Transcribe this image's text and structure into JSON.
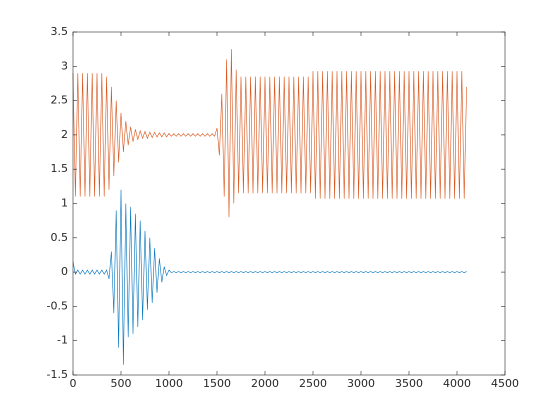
{
  "chart_data": {
    "type": "line",
    "x": [
      0,
      25,
      50,
      75,
      100,
      125,
      150,
      175,
      200,
      225,
      250,
      275,
      300,
      325,
      350,
      375,
      400,
      425,
      450,
      475,
      500,
      525,
      550,
      575,
      600,
      625,
      650,
      675,
      700,
      725,
      750,
      775,
      800,
      825,
      850,
      875,
      900,
      925,
      950,
      975,
      1000,
      1025,
      1050,
      1075,
      1100,
      1125,
      1150,
      1175,
      1200,
      1225,
      1250,
      1275,
      1300,
      1325,
      1350,
      1375,
      1400,
      1425,
      1450,
      1475,
      1500,
      1525,
      1550,
      1575,
      1600,
      1625,
      1650,
      1675,
      1700,
      1725,
      1750,
      1775,
      1800,
      1825,
      1850,
      1875,
      1900,
      1925,
      1950,
      1975,
      2000,
      2025,
      2050,
      2075,
      2100,
      2125,
      2150,
      2175,
      2200,
      2225,
      2250,
      2275,
      2300,
      2325,
      2350,
      2375,
      2400,
      2425,
      2450,
      2475,
      2500,
      2525,
      2550,
      2575,
      2600,
      2625,
      2650,
      2675,
      2700,
      2725,
      2750,
      2775,
      2800,
      2825,
      2850,
      2875,
      2900,
      2925,
      2950,
      2975,
      3000,
      3025,
      3050,
      3075,
      3100,
      3125,
      3150,
      3175,
      3200,
      3225,
      3250,
      3275,
      3300,
      3325,
      3350,
      3375,
      3400,
      3425,
      3450,
      3475,
      3500,
      3525,
      3550,
      3575,
      3600,
      3625,
      3650,
      3675,
      3700,
      3725,
      3750,
      3775,
      3800,
      3825,
      3850,
      3875,
      3900,
      3925,
      3950,
      3975,
      4000,
      4025,
      4050,
      4075,
      4100
    ],
    "series": [
      {
        "color": "#0072BD",
        "values": [
          0.15,
          -0.03,
          0.03,
          -0.03,
          0.03,
          -0.03,
          0.03,
          -0.03,
          0.03,
          -0.03,
          0.03,
          -0.03,
          0.03,
          -0.03,
          0.03,
          -0.1,
          0.3,
          -0.6,
          0.9,
          -1.1,
          1.2,
          -1.35,
          1.0,
          -0.95,
          0.95,
          -0.9,
          0.85,
          -0.8,
          0.75,
          -0.7,
          0.6,
          -0.55,
          0.5,
          -0.45,
          0.35,
          -0.3,
          0.2,
          -0.15,
          0.08,
          -0.05,
          0.03,
          -0.01,
          0.01,
          -0.01,
          0.01,
          -0.01,
          0.01,
          -0.01,
          0.01,
          -0.01,
          0.01,
          -0.01,
          0.01,
          -0.01,
          0.01,
          -0.01,
          0.01,
          -0.01,
          0.01,
          -0.01,
          0.01,
          -0.01,
          0.01,
          -0.01,
          0.01,
          -0.01,
          0.01,
          -0.01,
          0.01,
          -0.01,
          0.01,
          -0.01,
          0.01,
          -0.01,
          0.01,
          -0.01,
          0.01,
          -0.01,
          0.01,
          -0.01,
          0.01,
          -0.01,
          0.01,
          -0.01,
          0.01,
          -0.01,
          0.01,
          -0.01,
          0.01,
          -0.01,
          0.01,
          -0.01,
          0.01,
          -0.01,
          0.01,
          -0.01,
          0.01,
          -0.01,
          0.01,
          -0.01,
          0.01,
          -0.01,
          0.01,
          -0.01,
          0.01,
          -0.01,
          0.01,
          -0.01,
          0.01,
          -0.01,
          0.01,
          -0.01,
          0.01,
          -0.01,
          0.01,
          -0.01,
          0.01,
          -0.01,
          0.01,
          -0.01,
          0.01,
          -0.01,
          0.01,
          -0.01,
          0.01,
          -0.01,
          0.01,
          -0.01,
          0.01,
          -0.01,
          0.01,
          -0.01,
          0.01,
          -0.01,
          0.01,
          -0.01,
          0.01,
          -0.01,
          0.01,
          -0.01,
          0.01,
          -0.01,
          0.01,
          -0.01,
          0.01,
          -0.01,
          0.01,
          -0.01,
          0.01,
          -0.01,
          0.01,
          -0.01,
          0.01,
          -0.01,
          0.01,
          -0.01,
          0.01,
          -0.01,
          0.01,
          -0.01,
          0.01,
          -0.01,
          0.01,
          -0.01,
          0.01
        ]
      },
      {
        "color": "#D95319",
        "values": [
          2.9,
          1.1,
          2.9,
          1.1,
          2.9,
          1.1,
          2.9,
          1.1,
          2.9,
          1.1,
          2.9,
          1.1,
          2.9,
          1.1,
          2.85,
          1.2,
          2.7,
          1.4,
          2.5,
          1.6,
          2.32,
          1.75,
          2.2,
          1.85,
          2.12,
          1.9,
          2.08,
          1.93,
          2.06,
          1.95,
          2.05,
          1.95,
          2.04,
          1.96,
          2.04,
          1.97,
          2.03,
          1.97,
          2.03,
          1.97,
          2.02,
          1.98,
          2.02,
          1.98,
          2.02,
          1.98,
          2.02,
          1.98,
          2.02,
          1.98,
          2.02,
          1.98,
          2.02,
          1.98,
          2.02,
          1.98,
          2.02,
          1.98,
          2.02,
          1.98,
          2.1,
          1.7,
          2.6,
          1.1,
          3.1,
          0.8,
          3.25,
          1.0,
          2.95,
          1.15,
          2.85,
          1.15,
          2.85,
          1.15,
          2.85,
          1.15,
          2.85,
          1.15,
          2.85,
          1.15,
          2.85,
          1.15,
          2.85,
          1.15,
          2.85,
          1.15,
          2.85,
          1.15,
          2.85,
          1.15,
          2.85,
          1.15,
          2.85,
          1.15,
          2.85,
          1.15,
          2.85,
          1.15,
          2.85,
          1.15,
          2.93,
          1.07,
          2.93,
          1.07,
          2.93,
          1.07,
          2.93,
          1.07,
          2.93,
          1.07,
          2.93,
          1.07,
          2.93,
          1.07,
          2.93,
          1.07,
          2.93,
          1.07,
          2.93,
          1.07,
          2.93,
          1.07,
          2.93,
          1.07,
          2.93,
          1.07,
          2.93,
          1.07,
          2.93,
          1.07,
          2.93,
          1.07,
          2.93,
          1.07,
          2.93,
          1.07,
          2.93,
          1.07,
          2.93,
          1.07,
          2.93,
          1.07,
          2.93,
          1.07,
          2.93,
          1.07,
          2.93,
          1.07,
          2.93,
          1.07,
          2.93,
          1.07,
          2.93,
          1.07,
          2.93,
          1.07,
          2.93,
          1.07,
          2.93,
          1.07,
          2.93,
          1.07,
          2.93,
          1.07,
          2.7
        ]
      }
    ],
    "xlim": [
      0,
      4500
    ],
    "xticks": [
      0,
      500,
      1000,
      1500,
      2000,
      2500,
      3000,
      3500,
      4000,
      4500
    ],
    "ylim": [
      -1.5,
      3.5
    ],
    "yticks": [
      -1.5,
      -1,
      -0.5,
      0,
      0.5,
      1,
      1.5,
      2,
      2.5,
      3,
      3.5
    ],
    "grid": false
  }
}
